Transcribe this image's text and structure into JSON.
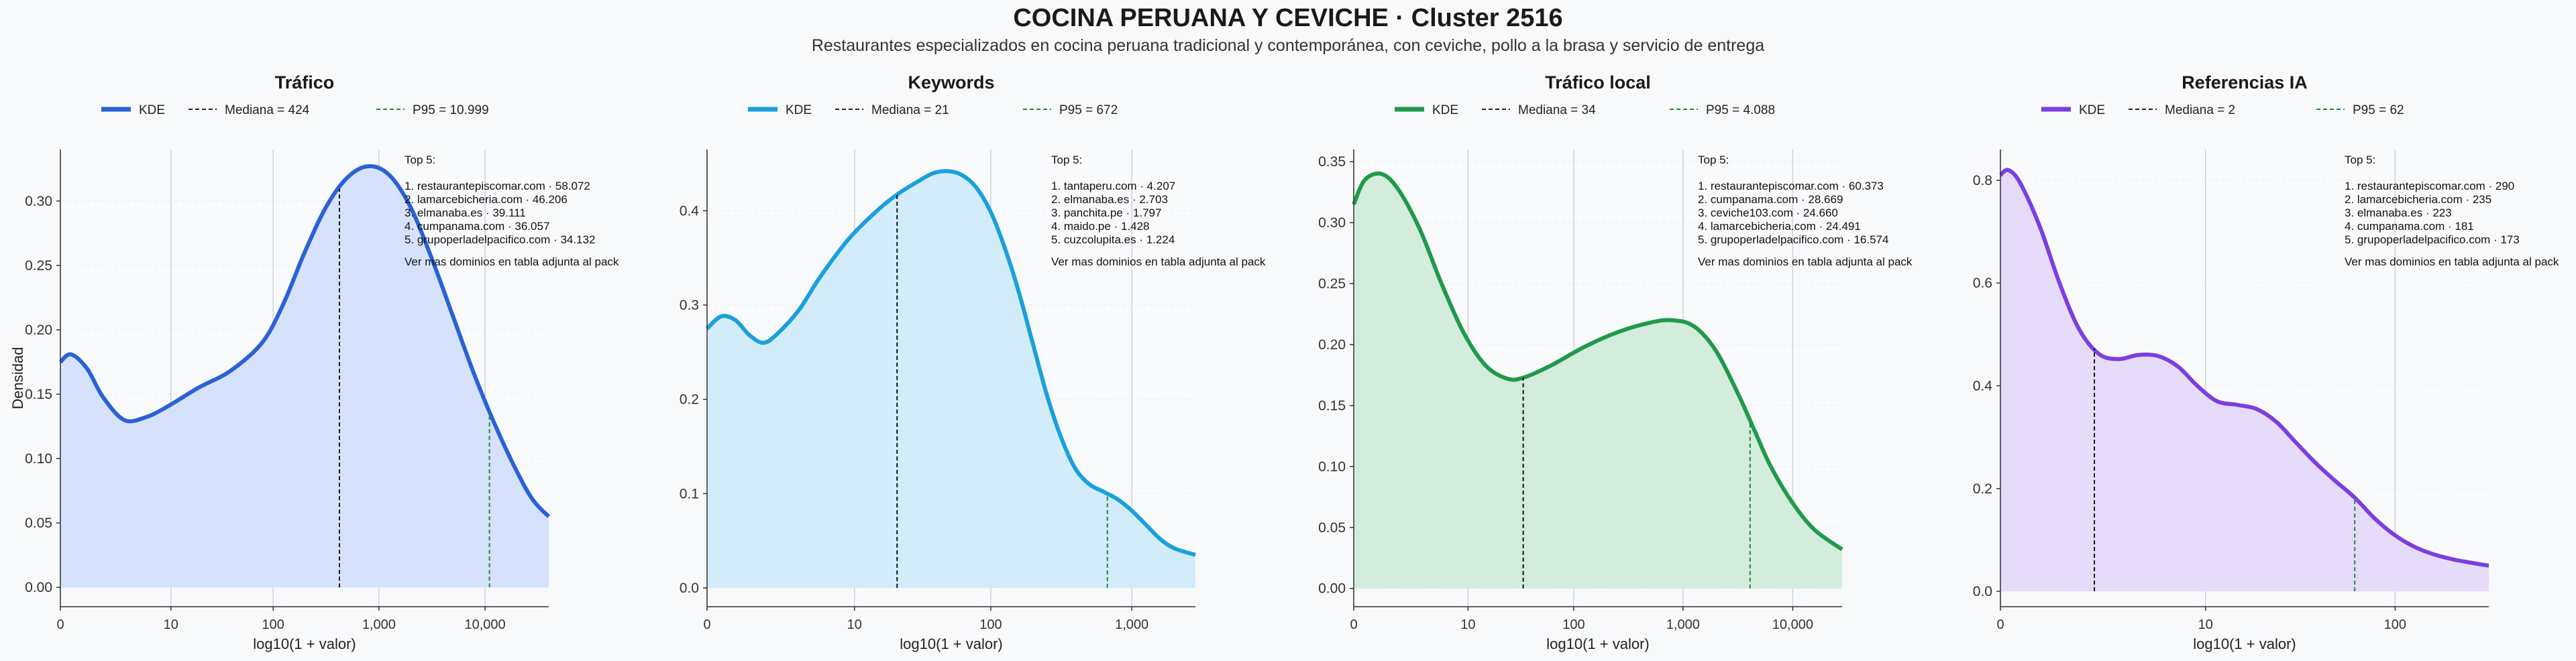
{
  "title": "COCINA PERUANA Y CEVICHE · Cluster 2516",
  "subtitle": "Restaurantes especializados en cocina peruana tradicional y contemporánea, con ceviche, pollo a la brasa y servicio de entrega",
  "legend_labels": {
    "kde": "KDE",
    "note": "Ver mas dominios en tabla adjunta al pack",
    "top_header": "Top 5:"
  },
  "chart_data": [
    {
      "type": "area",
      "title": "Tráfico",
      "xlabel": "log10(1 + valor)",
      "ylabel": "Densidad",
      "x_scale": "log10(1+x)",
      "x_ticks": [
        "0",
        "10",
        "100",
        "1,000",
        "10,000"
      ],
      "xlim": [
        0,
        4.6
      ],
      "ylim": [
        -0.015,
        0.34
      ],
      "y_ticks": [
        "0.00",
        "0.05",
        "0.10",
        "0.15",
        "0.20",
        "0.25",
        "0.30"
      ],
      "color": "#2a62d6",
      "fill": "#d6e2fb",
      "median_label": "Mediana = 424",
      "median_x": 424,
      "p95_label": "P95 = 10.999",
      "p95_x": 10999,
      "kde": [
        [
          0,
          0.175
        ],
        [
          0.1,
          0.181
        ],
        [
          0.25,
          0.17
        ],
        [
          0.4,
          0.148
        ],
        [
          0.6,
          0.13
        ],
        [
          0.8,
          0.132
        ],
        [
          1.0,
          0.14
        ],
        [
          1.3,
          0.155
        ],
        [
          1.6,
          0.168
        ],
        [
          1.9,
          0.19
        ],
        [
          2.1,
          0.22
        ],
        [
          2.3,
          0.26
        ],
        [
          2.5,
          0.295
        ],
        [
          2.7,
          0.318
        ],
        [
          2.9,
          0.327
        ],
        [
          3.1,
          0.32
        ],
        [
          3.3,
          0.295
        ],
        [
          3.5,
          0.255
        ],
        [
          3.7,
          0.21
        ],
        [
          3.9,
          0.165
        ],
        [
          4.1,
          0.125
        ],
        [
          4.3,
          0.09
        ],
        [
          4.45,
          0.068
        ],
        [
          4.6,
          0.055
        ]
      ],
      "top5": [
        "1. restaurantepiscomar.com · 58.072",
        "2. lamarcebicheria.com · 46.206",
        "3. elmanaba.es · 39.111",
        "4. cumpanama.com · 36.057",
        "5. grupoperladelpacifico.com · 34.132"
      ]
    },
    {
      "type": "area",
      "title": "Keywords",
      "xlabel": "log10(1 + valor)",
      "ylabel": "",
      "x_scale": "log10(1+x)",
      "x_ticks": [
        "0",
        "10",
        "100",
        "1,000"
      ],
      "xlim": [
        0,
        3.45
      ],
      "ylim": [
        -0.02,
        0.465
      ],
      "y_ticks": [
        "0.0",
        "0.1",
        "0.2",
        "0.3",
        "0.4"
      ],
      "color": "#1aa0dc",
      "fill": "#d2edf9",
      "median_label": "Mediana = 21",
      "median_x": 21,
      "p95_label": "P95 = 672",
      "p95_x": 672,
      "kde": [
        [
          0,
          0.275
        ],
        [
          0.1,
          0.288
        ],
        [
          0.2,
          0.284
        ],
        [
          0.3,
          0.268
        ],
        [
          0.4,
          0.26
        ],
        [
          0.5,
          0.27
        ],
        [
          0.65,
          0.295
        ],
        [
          0.8,
          0.33
        ],
        [
          1.0,
          0.37
        ],
        [
          1.2,
          0.4
        ],
        [
          1.35,
          0.418
        ],
        [
          1.5,
          0.432
        ],
        [
          1.6,
          0.44
        ],
        [
          1.7,
          0.442
        ],
        [
          1.8,
          0.438
        ],
        [
          1.9,
          0.425
        ],
        [
          2.0,
          0.4
        ],
        [
          2.1,
          0.362
        ],
        [
          2.2,
          0.315
        ],
        [
          2.3,
          0.26
        ],
        [
          2.4,
          0.205
        ],
        [
          2.5,
          0.16
        ],
        [
          2.6,
          0.127
        ],
        [
          2.7,
          0.11
        ],
        [
          2.8,
          0.102
        ],
        [
          2.9,
          0.094
        ],
        [
          3.0,
          0.082
        ],
        [
          3.1,
          0.067
        ],
        [
          3.2,
          0.052
        ],
        [
          3.3,
          0.042
        ],
        [
          3.45,
          0.035
        ]
      ],
      "top5": [
        "1. tantaperu.com · 4.207",
        "2. elmanaba.es · 2.703",
        "3. panchita.pe · 1.797",
        "4. maido.pe · 1.428",
        "5. cuzcolupita.es · 1.224"
      ]
    },
    {
      "type": "area",
      "title": "Tráfico local",
      "xlabel": "log10(1 + valor)",
      "ylabel": "",
      "x_scale": "log10(1+x)",
      "x_ticks": [
        "0",
        "10",
        "100",
        "1,000",
        "10,000"
      ],
      "xlim": [
        0,
        4.45
      ],
      "ylim": [
        -0.015,
        0.36
      ],
      "y_ticks": [
        "0.00",
        "0.05",
        "0.10",
        "0.15",
        "0.20",
        "0.25",
        "0.30",
        "0.35"
      ],
      "color": "#1f9a4b",
      "fill": "#d3ecdc",
      "median_label": "Mediana = 34",
      "median_x": 34,
      "p95_label": "P95 = 4.088",
      "p95_x": 4088,
      "kde": [
        [
          0,
          0.315
        ],
        [
          0.1,
          0.335
        ],
        [
          0.25,
          0.34
        ],
        [
          0.4,
          0.328
        ],
        [
          0.6,
          0.295
        ],
        [
          0.8,
          0.25
        ],
        [
          1.0,
          0.21
        ],
        [
          1.2,
          0.183
        ],
        [
          1.4,
          0.172
        ],
        [
          1.55,
          0.173
        ],
        [
          1.8,
          0.183
        ],
        [
          2.1,
          0.198
        ],
        [
          2.4,
          0.21
        ],
        [
          2.7,
          0.218
        ],
        [
          2.9,
          0.22
        ],
        [
          3.1,
          0.215
        ],
        [
          3.3,
          0.195
        ],
        [
          3.5,
          0.16
        ],
        [
          3.65,
          0.13
        ],
        [
          3.8,
          0.1
        ],
        [
          4.0,
          0.07
        ],
        [
          4.2,
          0.048
        ],
        [
          4.45,
          0.032
        ]
      ],
      "top5": [
        "1. restaurantepiscomar.com · 60.373",
        "2. cumpanama.com · 28.669",
        "3. ceviche103.com · 24.660",
        "4. lamarcebicheria.com · 24.491",
        "5. grupoperladelpacifico.com · 16.574"
      ]
    },
    {
      "type": "area",
      "title": "Referencias IA",
      "xlabel": "log10(1 + valor)",
      "ylabel": "",
      "x_scale": "log10(1+x)",
      "x_ticks": [
        "0",
        "10",
        "100"
      ],
      "xlim": [
        0,
        2.48
      ],
      "ylim": [
        -0.03,
        0.86
      ],
      "y_ticks": [
        "0.0",
        "0.2",
        "0.4",
        "0.6",
        "0.8"
      ],
      "color": "#7b3fe0",
      "fill": "#e6dbf8",
      "median_label": "Mediana = 2",
      "median_x": 2,
      "p95_label": "P95 = 62",
      "p95_x": 62,
      "kde": [
        [
          0,
          0.81
        ],
        [
          0.04,
          0.82
        ],
        [
          0.1,
          0.795
        ],
        [
          0.2,
          0.71
        ],
        [
          0.3,
          0.6
        ],
        [
          0.4,
          0.51
        ],
        [
          0.5,
          0.462
        ],
        [
          0.6,
          0.452
        ],
        [
          0.7,
          0.46
        ],
        [
          0.8,
          0.458
        ],
        [
          0.9,
          0.438
        ],
        [
          1.0,
          0.4
        ],
        [
          1.1,
          0.37
        ],
        [
          1.2,
          0.363
        ],
        [
          1.3,
          0.355
        ],
        [
          1.4,
          0.33
        ],
        [
          1.5,
          0.29
        ],
        [
          1.6,
          0.25
        ],
        [
          1.7,
          0.215
        ],
        [
          1.8,
          0.182
        ],
        [
          1.9,
          0.142
        ],
        [
          2.0,
          0.11
        ],
        [
          2.1,
          0.087
        ],
        [
          2.2,
          0.072
        ],
        [
          2.3,
          0.062
        ],
        [
          2.4,
          0.055
        ],
        [
          2.48,
          0.05
        ]
      ],
      "top5": [
        "1. restaurantepiscomar.com · 290",
        "2. lamarcebicheria.com · 235",
        "3. elmanaba.es · 223",
        "4. cumpanama.com · 181",
        "5. grupoperladelpacifico.com · 173"
      ]
    }
  ]
}
